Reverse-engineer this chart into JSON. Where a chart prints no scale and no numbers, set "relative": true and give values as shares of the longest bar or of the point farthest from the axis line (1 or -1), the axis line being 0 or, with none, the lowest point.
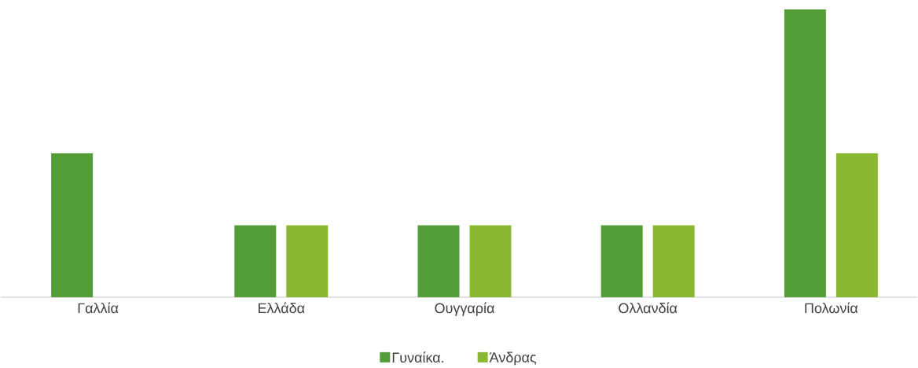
{
  "chart_data": {
    "type": "bar",
    "relative": true,
    "categories": [
      "Γαλλία",
      "Ελλάδα",
      "Ουγγαρία",
      "Ολλανδία",
      "Πολωνία"
    ],
    "series": [
      {
        "name": "Γυναίκα.",
        "color": "#549e3a",
        "values": [
          0.5,
          0.25,
          0.25,
          0.25,
          1
        ]
      },
      {
        "name": "Άνδρας",
        "color": "#8ab833",
        "values": [
          null,
          0.25,
          0.25,
          0.25,
          0.5
        ]
      }
    ],
    "legend": "bottom"
  }
}
